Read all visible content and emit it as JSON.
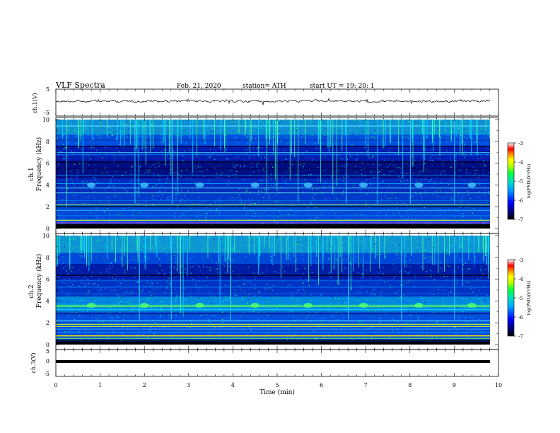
{
  "header": {
    "title": "VLF  Spectra",
    "date": "Feb. 21, 2020",
    "station": "station= ATH",
    "start": "start  UT  =    19: 20: 1"
  },
  "chart_data": [
    {
      "type": "line",
      "ylabel": "ch.1(V)",
      "ylim": [
        -5,
        5
      ],
      "yticks": [
        "5",
        "-5"
      ],
      "xlim": [
        0,
        10
      ]
    },
    {
      "type": "heatmap",
      "ylabel": "Frequency (kHz)",
      "channel_label": "ch.1",
      "ylim": [
        0,
        10
      ],
      "yticks": [
        "0",
        "2",
        "4",
        "6",
        "8",
        "10"
      ],
      "xlim": [
        0,
        10
      ],
      "colorbar": {
        "label": "log(PSD)(V²/Hz)",
        "range": [
          -7,
          -3
        ],
        "ticks": [
          "-3",
          "-4",
          "-5",
          "-6",
          "-7"
        ]
      }
    },
    {
      "type": "heatmap",
      "ylabel": "Frequency (kHz)",
      "channel_label": "ch.2",
      "ylim": [
        0,
        10
      ],
      "yticks": [
        "0",
        "2",
        "4",
        "6",
        "8",
        "10"
      ],
      "xlim": [
        0,
        10
      ],
      "colorbar": {
        "label": "log(PSD)(V²/Hz)",
        "range": [
          -7,
          -3
        ],
        "ticks": [
          "-3",
          "-4",
          "-5",
          "-6",
          "-7"
        ]
      }
    },
    {
      "type": "line",
      "ylabel": "ch.3(V)",
      "ylim": [
        -5,
        5
      ],
      "yticks": [
        "5",
        "0",
        "-5"
      ],
      "xlim": [
        0,
        10
      ],
      "xlabel": "Time  (min)",
      "xticks": [
        "0",
        "1",
        "2",
        "3",
        "4",
        "5",
        "6",
        "7",
        "8",
        "9",
        "10"
      ]
    }
  ]
}
